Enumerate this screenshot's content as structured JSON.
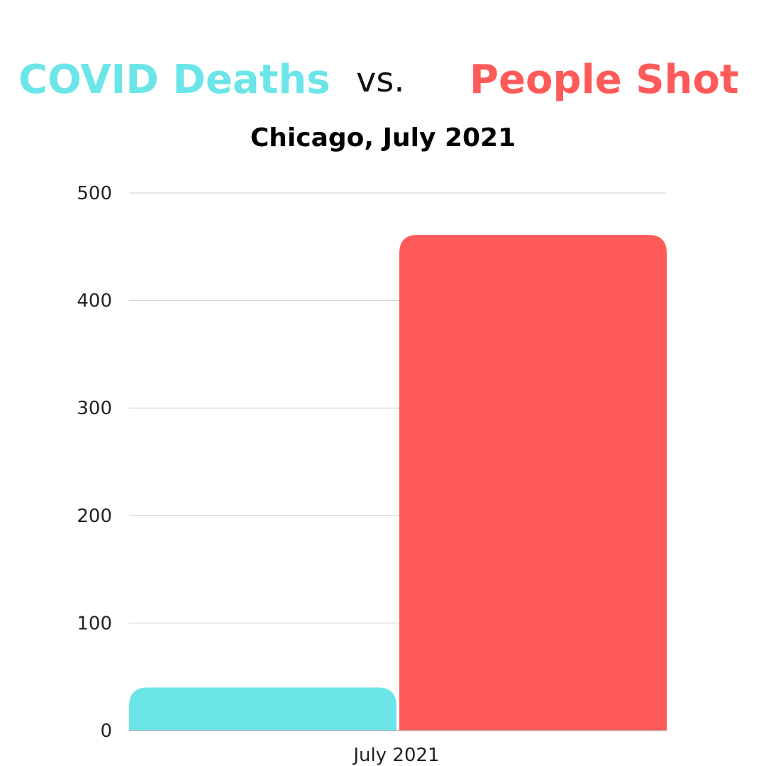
{
  "header": {
    "left_label": "COVID Deaths",
    "vs_label": "vs.",
    "right_label": "People Shot",
    "subtitle": "Chicago, July 2021"
  },
  "colors": {
    "covid": "#6ce5e8",
    "shot": "#ff5a5a",
    "grid": "#cfcfcf",
    "text": "#222222"
  },
  "chart_data": {
    "type": "bar",
    "title": "Chicago, July 2021",
    "categories": [
      "July 2021"
    ],
    "series": [
      {
        "name": "COVID Deaths",
        "values": [
          40
        ]
      },
      {
        "name": "People Shot",
        "values": [
          461
        ]
      }
    ],
    "ylim": [
      0,
      500
    ],
    "yticks": [
      0,
      100,
      200,
      300,
      400,
      500
    ],
    "grid": true,
    "legend": "none"
  }
}
